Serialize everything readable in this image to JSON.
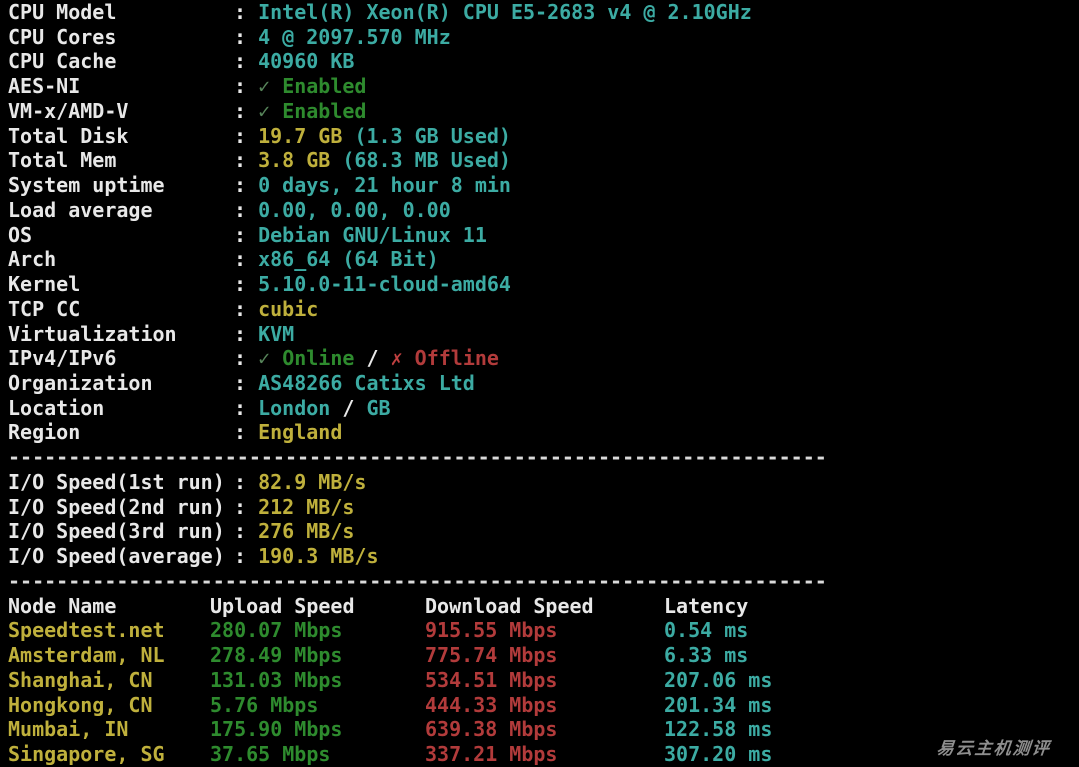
{
  "colors": {
    "background": "#000000",
    "foreground": "#E8E8E8",
    "cyan": "#3CABA3",
    "yellow": "#BFB03C",
    "green": "#2E8B2E",
    "red": "#B23B3B"
  },
  "colon": ":",
  "separator": "--------------------------------------------------------------------",
  "system_info": {
    "cpu_model": {
      "label": "CPU Model",
      "value": "Intel(R) Xeon(R) CPU E5-2683 v4 @ 2.10GHz"
    },
    "cpu_cores": {
      "label": "CPU Cores",
      "value": "4 @ 2097.570 MHz"
    },
    "cpu_cache": {
      "label": "CPU Cache",
      "value": "40960 KB"
    },
    "aes_ni": {
      "label": "AES-NI",
      "check": "✓",
      "value": "Enabled"
    },
    "vmx_amdv": {
      "label": "VM-x/AMD-V",
      "check": "✓",
      "value": "Enabled"
    },
    "total_disk": {
      "label": "Total Disk",
      "size": "19.7 GB",
      "used": "(1.3 GB Used)"
    },
    "total_mem": {
      "label": "Total Mem",
      "size": "3.8 GB",
      "used": "(68.3 MB Used)"
    },
    "uptime": {
      "label": "System uptime",
      "value": "0 days, 21 hour 8 min"
    },
    "load_average": {
      "label": "Load average",
      "value": "0.00, 0.00, 0.00"
    },
    "os": {
      "label": "OS",
      "value": "Debian GNU/Linux 11"
    },
    "arch": {
      "label": "Arch",
      "value": "x86_64 (64 Bit)"
    },
    "kernel": {
      "label": "Kernel",
      "value": "5.10.0-11-cloud-amd64"
    },
    "tcp_cc": {
      "label": "TCP CC",
      "value": "cubic"
    },
    "virtualization": {
      "label": "Virtualization",
      "value": "KVM"
    },
    "ip_status": {
      "label": "IPv4/IPv6",
      "online_check": "✓",
      "online": "Online",
      "slash": "/",
      "offline_cross": "✗",
      "offline": "Offline"
    },
    "organization": {
      "label": "Organization",
      "value": "AS48266 Catixs Ltd"
    },
    "location": {
      "label": "Location",
      "city": "London",
      "slash": "/",
      "country": "GB"
    },
    "region": {
      "label": "Region",
      "value": "England"
    }
  },
  "io_speed": {
    "run1": {
      "label": "I/O Speed(1st run)",
      "value": "82.9 MB/s"
    },
    "run2": {
      "label": "I/O Speed(2nd run)",
      "value": "212 MB/s"
    },
    "run3": {
      "label": "I/O Speed(3rd run)",
      "value": "276 MB/s"
    },
    "average": {
      "label": "I/O Speed(average)",
      "value": "190.3 MB/s"
    }
  },
  "speedtest": {
    "headers": {
      "node": "Node Name",
      "upload": "Upload Speed",
      "download": "Download Speed",
      "latency": "Latency"
    },
    "rows": [
      {
        "node": "Speedtest.net",
        "upload": "280.07 Mbps",
        "download": "915.55 Mbps",
        "latency": "0.54 ms"
      },
      {
        "node": "Amsterdam, NL",
        "upload": "278.49 Mbps",
        "download": "775.74 Mbps",
        "latency": "6.33 ms"
      },
      {
        "node": "Shanghai, CN",
        "upload": "131.03 Mbps",
        "download": "534.51 Mbps",
        "latency": "207.06 ms"
      },
      {
        "node": "Hongkong, CN",
        "upload": "5.76 Mbps",
        "download": "444.33 Mbps",
        "latency": "201.34 ms"
      },
      {
        "node": "Mumbai, IN",
        "upload": "175.90 Mbps",
        "download": "639.38 Mbps",
        "latency": "122.58 ms"
      },
      {
        "node": "Singapore, SG",
        "upload": "37.65 Mbps",
        "download": "337.21 Mbps",
        "latency": "307.20 ms"
      }
    ]
  },
  "watermark": "易云主机测评"
}
